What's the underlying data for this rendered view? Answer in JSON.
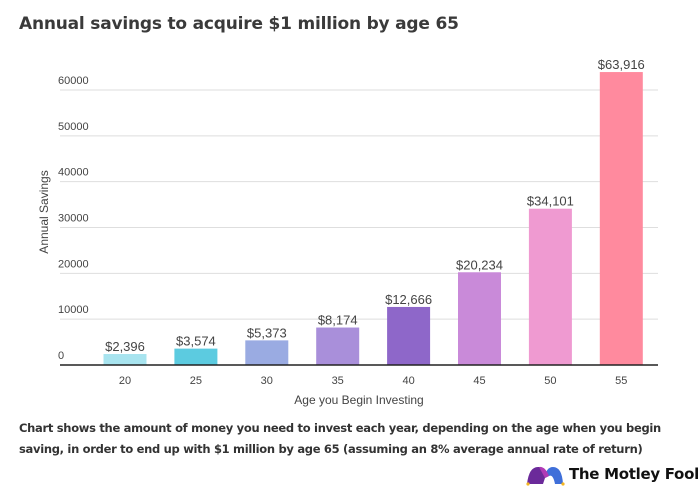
{
  "chart_data": {
    "type": "bar",
    "title": "Annual savings to acquire $1 million by age 65",
    "xlabel": "Age you Begin Investing",
    "ylabel": "Annual Savings",
    "categories": [
      "20",
      "25",
      "30",
      "35",
      "40",
      "45",
      "50",
      "55"
    ],
    "values": [
      2396,
      3574,
      5373,
      8174,
      12666,
      20234,
      34101,
      63916
    ],
    "data_labels": [
      "$2,396",
      "$3,574",
      "$5,373",
      "$8,174",
      "$12,666",
      "$20,234",
      "$34,101",
      "$63,916"
    ],
    "colors": [
      "#a8e4ef",
      "#5ccbe0",
      "#9aabe2",
      "#a98fda",
      "#8e67c9",
      "#c98ad9",
      "#ef9ad1",
      "#ff8a9e"
    ],
    "yticks": [
      0,
      10000,
      20000,
      30000,
      40000,
      50000,
      60000
    ],
    "ylim": [
      0,
      60000
    ],
    "grid": true,
    "legend": "none"
  },
  "caption": "Chart shows the amount of money you need to invest each year, depending on the age when you begin saving, in order to end up with $1 million by age 65 (assuming an 8% average annual rate of return)",
  "brand": {
    "name": "The Motley Fool"
  }
}
